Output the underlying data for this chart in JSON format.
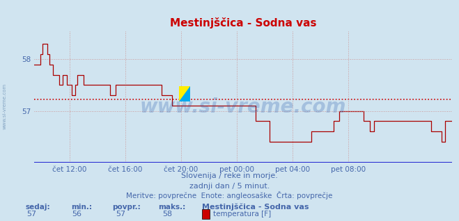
{
  "title": "Mestinjščica - Sodna vas",
  "bg_color": "#d0e4f0",
  "plot_bg_color": "#d0e4f0",
  "line_color": "#aa0000",
  "avg_line_color": "#cc0000",
  "grid_color": "#cc9999",
  "text_color": "#4466aa",
  "ylim": [
    56.0,
    58.55
  ],
  "yticks": [
    57.0,
    58.0
  ],
  "xtick_labels": [
    "čet 12:00",
    "čet 16:00",
    "čet 20:00",
    "pet 00:00",
    "pet 04:00",
    "pet 08:00"
  ],
  "avg_value": 57.22,
  "watermark": "www.si-vreme.com",
  "subtitle1": "Slovenija / reke in morje.",
  "subtitle2": "zadnji dan / 5 minut.",
  "subtitle3": "Meritve: povprečne  Enote: angleosaške  Črta: povprečje",
  "legend_title": "Mestinjščica - Sodna vas",
  "legend_label": "temperatura [F]",
  "legend_color": "#cc0000",
  "stat_sedaj": 57,
  "stat_min": 56,
  "stat_povpr": 57,
  "stat_maks": 58,
  "rotated_label": "www.si-vreme.com",
  "time_series": [
    57.9,
    57.9,
    57.9,
    57.9,
    57.9,
    58.1,
    58.1,
    58.3,
    58.3,
    58.3,
    58.3,
    58.1,
    58.1,
    57.9,
    57.9,
    57.9,
    57.7,
    57.7,
    57.7,
    57.7,
    57.7,
    57.5,
    57.5,
    57.5,
    57.7,
    57.7,
    57.7,
    57.7,
    57.5,
    57.5,
    57.5,
    57.5,
    57.3,
    57.3,
    57.3,
    57.5,
    57.5,
    57.7,
    57.7,
    57.7,
    57.7,
    57.7,
    57.5,
    57.5,
    57.5,
    57.5,
    57.5,
    57.5,
    57.5,
    57.5,
    57.5,
    57.5,
    57.5,
    57.5,
    57.5,
    57.5,
    57.5,
    57.5,
    57.5,
    57.5,
    57.5,
    57.5,
    57.5,
    57.5,
    57.5,
    57.3,
    57.3,
    57.3,
    57.3,
    57.3,
    57.5,
    57.5,
    57.5,
    57.5,
    57.5,
    57.5,
    57.5,
    57.5,
    57.5,
    57.5,
    57.5,
    57.5,
    57.5,
    57.5,
    57.5,
    57.5,
    57.5,
    57.5,
    57.5,
    57.5,
    57.5,
    57.5,
    57.5,
    57.5,
    57.5,
    57.5,
    57.5,
    57.5,
    57.5,
    57.5,
    57.5,
    57.5,
    57.5,
    57.5,
    57.5,
    57.5,
    57.5,
    57.5,
    57.5,
    57.3,
    57.3,
    57.3,
    57.3,
    57.3,
    57.3,
    57.3,
    57.3,
    57.3,
    57.1,
    57.1,
    57.1,
    57.1,
    57.1,
    57.1,
    57.1,
    57.1,
    57.1,
    57.1,
    57.1,
    57.1,
    57.1,
    57.1,
    57.1,
    57.1,
    57.1,
    57.1,
    57.1,
    57.1,
    57.1,
    57.1,
    57.1,
    57.1,
    57.1,
    57.1,
    57.1,
    57.1,
    57.1,
    57.1,
    57.1,
    57.1,
    57.1,
    57.1,
    57.1,
    57.1,
    57.1,
    57.1,
    57.1,
    57.1,
    57.1,
    57.1,
    57.1,
    57.1,
    57.1,
    57.1,
    57.1,
    57.1,
    57.1,
    57.1,
    57.1,
    57.1,
    57.1,
    57.1,
    57.1,
    57.1,
    57.1,
    57.1,
    57.1,
    57.1,
    57.1,
    57.1,
    57.1,
    57.1,
    57.1,
    57.1,
    57.1,
    57.1,
    57.1,
    57.1,
    57.1,
    57.1,
    56.8,
    56.8,
    56.8,
    56.8,
    56.8,
    56.8,
    56.8,
    56.8,
    56.8,
    56.8,
    56.8,
    56.8,
    56.4,
    56.4,
    56.4,
    56.4,
    56.4,
    56.4,
    56.4,
    56.4,
    56.4,
    56.4,
    56.4,
    56.4,
    56.4,
    56.4,
    56.4,
    56.4,
    56.4,
    56.4,
    56.4,
    56.4,
    56.4,
    56.4,
    56.4,
    56.4,
    56.4,
    56.4,
    56.4,
    56.4,
    56.4,
    56.4,
    56.4,
    56.4,
    56.4,
    56.4,
    56.4,
    56.4,
    56.6,
    56.6,
    56.6,
    56.6,
    56.6,
    56.6,
    56.6,
    56.6,
    56.6,
    56.6,
    56.6,
    56.6,
    56.6,
    56.6,
    56.6,
    56.6,
    56.6,
    56.6,
    56.6,
    56.8,
    56.8,
    56.8,
    56.8,
    56.8,
    57.0,
    57.0,
    57.0,
    57.0,
    57.0,
    57.0,
    57.0,
    57.0,
    57.0,
    57.0,
    57.0,
    57.0,
    57.0,
    57.0,
    57.0,
    57.0,
    57.0,
    57.0,
    57.0,
    57.0,
    57.0,
    56.8,
    56.8,
    56.8,
    56.8,
    56.8,
    56.6,
    56.6,
    56.6,
    56.6,
    56.8,
    56.8,
    56.8,
    56.8,
    56.8,
    56.8,
    56.8,
    56.8,
    56.8,
    56.8,
    56.8,
    56.8,
    56.8,
    56.8,
    56.8,
    56.8,
    56.8,
    56.8,
    56.8,
    56.8,
    56.8,
    56.8,
    56.8,
    56.8,
    56.8,
    56.8,
    56.8,
    56.8,
    56.8,
    56.8,
    56.8,
    56.8,
    56.8,
    56.8,
    56.8,
    56.8,
    56.8,
    56.8,
    56.8,
    56.8,
    56.8,
    56.8,
    56.8,
    56.8,
    56.8,
    56.8,
    56.8,
    56.8,
    56.8,
    56.6,
    56.6,
    56.6,
    56.6,
    56.6,
    56.6,
    56.6,
    56.6,
    56.6,
    56.4,
    56.4,
    56.4,
    56.8,
    56.8,
    56.8,
    56.8,
    56.8,
    56.8,
    56.8
  ]
}
